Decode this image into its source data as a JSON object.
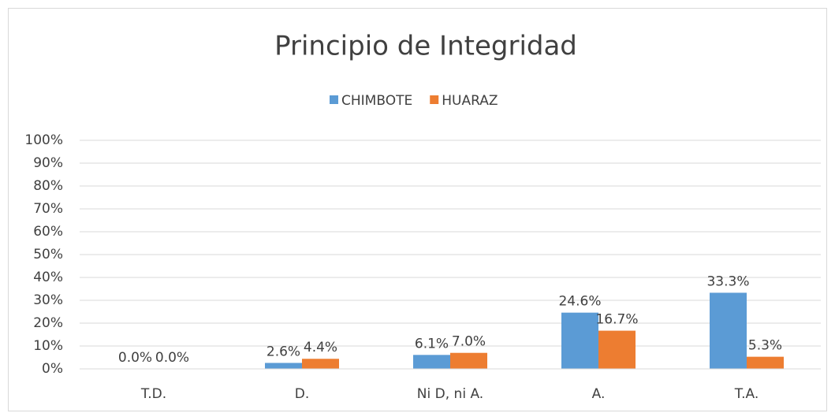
{
  "chart_data": {
    "type": "bar",
    "title": "Principio de Integridad",
    "categories": [
      "T.D.",
      "D.",
      "Ni D, ni A.",
      "A.",
      "T.A."
    ],
    "series": [
      {
        "name": "CHIMBOTE",
        "color": "#5b9bd5",
        "values": [
          0.0,
          2.6,
          6.1,
          24.6,
          33.3
        ],
        "value_labels": [
          "0.0%",
          "2.6%",
          "6.1%",
          "24.6%",
          "33.3%"
        ]
      },
      {
        "name": "HUARAZ",
        "color": "#ed7d31",
        "values": [
          0.0,
          4.4,
          7.0,
          16.7,
          5.3
        ],
        "value_labels": [
          "0.0%",
          "4.4%",
          "7.0%",
          "16.7%",
          "5.3%"
        ]
      }
    ],
    "ylim": [
      0,
      100
    ],
    "yticks": [
      {
        "value": 0,
        "label": "0%"
      },
      {
        "value": 10,
        "label": "10%"
      },
      {
        "value": 20,
        "label": "20%"
      },
      {
        "value": 30,
        "label": "30%"
      },
      {
        "value": 40,
        "label": "40%"
      },
      {
        "value": 50,
        "label": "50%"
      },
      {
        "value": 60,
        "label": "60%"
      },
      {
        "value": 70,
        "label": "70%"
      },
      {
        "value": 80,
        "label": "80%"
      },
      {
        "value": 90,
        "label": "90%"
      },
      {
        "value": 100,
        "label": "100%"
      }
    ],
    "grid": true,
    "legend": "top"
  }
}
